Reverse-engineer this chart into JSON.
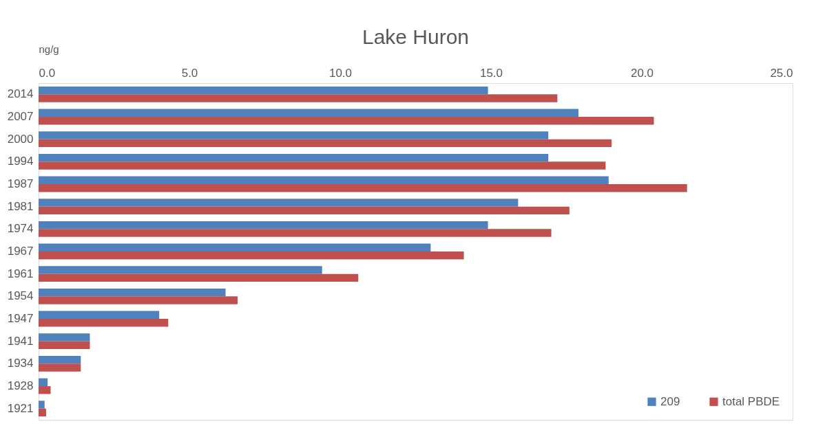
{
  "chart_data": {
    "type": "bar",
    "orientation": "horizontal",
    "title": "Lake Huron",
    "xlabel": "ng/g",
    "categories": [
      "2014",
      "2007",
      "2000",
      "1994",
      "1987",
      "1981",
      "1974",
      "1967",
      "1961",
      "1954",
      "1947",
      "1941",
      "1934",
      "1928",
      "1921"
    ],
    "series": [
      {
        "name": "209",
        "color": "#4f81bd",
        "values": [
          14.9,
          17.9,
          16.9,
          16.9,
          18.9,
          15.9,
          14.9,
          13.0,
          9.4,
          6.2,
          4.0,
          1.7,
          1.4,
          0.3,
          0.2
        ]
      },
      {
        "name": "total PBDE",
        "color": "#c0504d",
        "values": [
          17.2,
          20.4,
          19.0,
          18.8,
          21.5,
          17.6,
          17.0,
          14.1,
          10.6,
          6.6,
          4.3,
          1.7,
          1.4,
          0.4,
          0.25
        ]
      }
    ],
    "xlim": [
      0,
      25
    ],
    "xticks": [
      {
        "value": 0,
        "label": "0.0"
      },
      {
        "value": 5,
        "label": "5.0"
      },
      {
        "value": 10,
        "label": "10.0"
      },
      {
        "value": 15,
        "label": "15.0"
      },
      {
        "value": 20,
        "label": "20.0"
      },
      {
        "value": 25,
        "label": "25.0"
      }
    ],
    "grid": false,
    "legend": "bottom right"
  }
}
